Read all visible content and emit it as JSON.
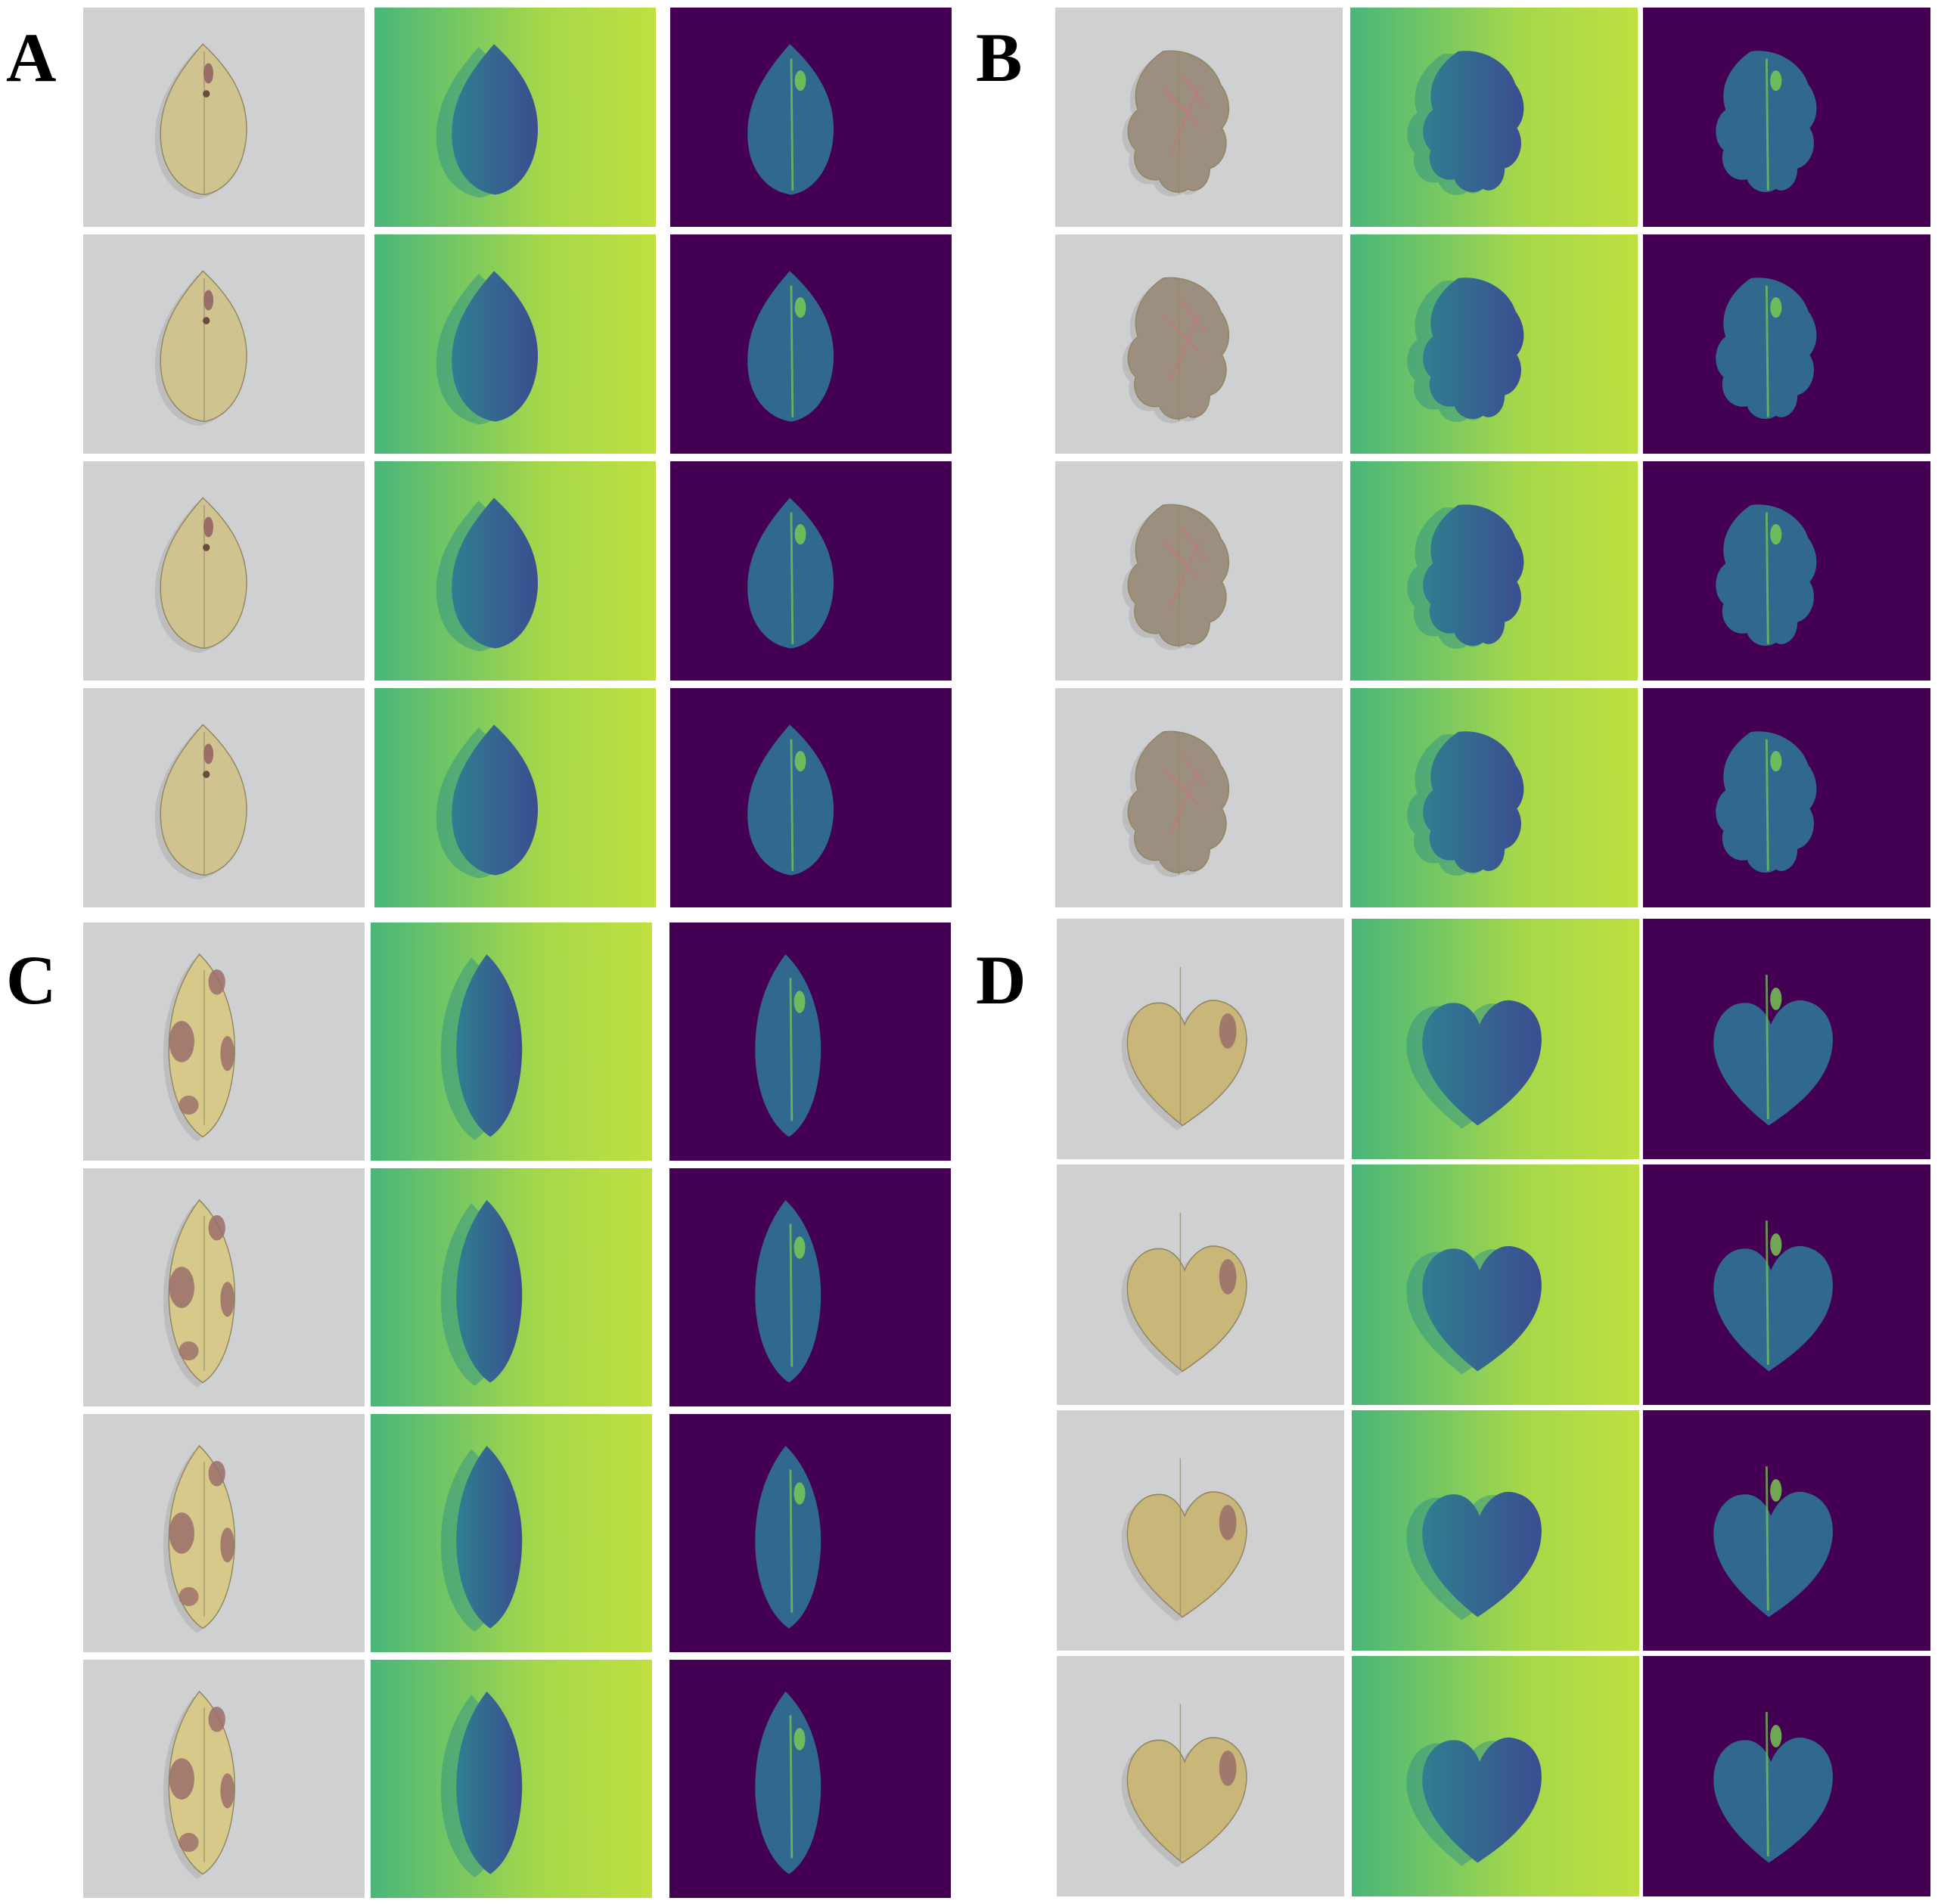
{
  "panels": [
    {
      "label": "A",
      "leaf_shape": "ovate",
      "rows": 4,
      "columns": [
        "rgb-photo",
        "grayscale-viridis-map",
        "masked-viridis-map"
      ]
    },
    {
      "label": "B",
      "leaf_shape": "lobed",
      "rows": 4,
      "columns": [
        "rgb-photo",
        "grayscale-viridis-map",
        "masked-viridis-map"
      ]
    },
    {
      "label": "C",
      "leaf_shape": "elliptic-spotted",
      "rows": 4,
      "columns": [
        "rgb-photo",
        "grayscale-viridis-map",
        "masked-viridis-map"
      ]
    },
    {
      "label": "D",
      "leaf_shape": "heart",
      "rows": 4,
      "columns": [
        "rgb-photo",
        "grayscale-viridis-map",
        "masked-viridis-map"
      ]
    }
  ],
  "colors": {
    "photo_background": "#cfd0d1",
    "photo_leaf_ovate": "#cfc38f",
    "photo_leaf_lobed": "#9c8f80",
    "photo_leaf_spotted": "#d6c98a",
    "photo_leaf_heart": "#c9b77a",
    "lesion": "#9a6d6a",
    "viridis_bg_light": "#a6d84a",
    "viridis_bg_dark": "#48b67a",
    "viridis_leaf": "#2f7f91",
    "viridis_leaf_dark": "#3b4d8f",
    "mask_bg": "#440154",
    "mask_leaf": "#31688e",
    "mask_highlight": "#7ad151"
  }
}
